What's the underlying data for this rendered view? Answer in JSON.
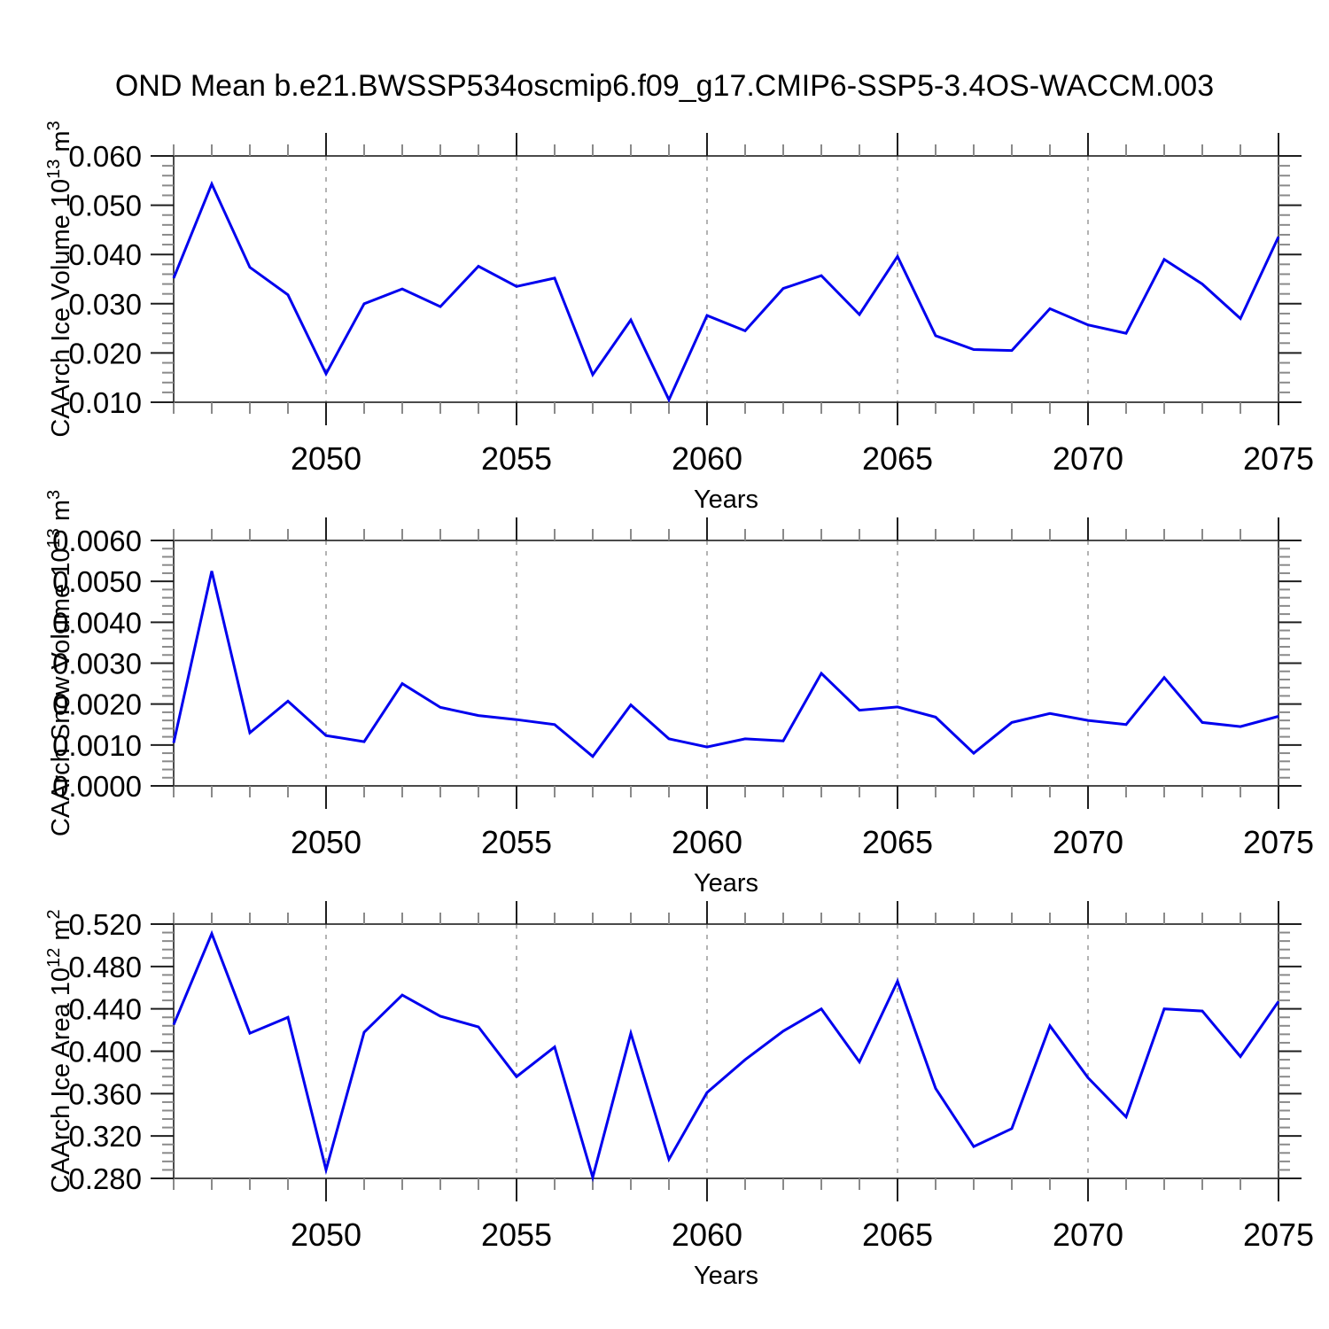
{
  "title": "OND Mean b.e21.BWSSP534oscmip6.f09_g17.CMIP6-SSP5-3.4OS-WACCM.003",
  "colors": {
    "line": "#0000EE",
    "frame": "#4a4a4a",
    "tick_major": "#1f1f1f",
    "tick_minor": "#8a8a8a",
    "grid": "#9a9a9a",
    "text": "#000000",
    "background": "#ffffff"
  },
  "x_axis": {
    "label": "Years",
    "years": [
      2046,
      2047,
      2048,
      2049,
      2050,
      2051,
      2052,
      2053,
      2054,
      2055,
      2056,
      2057,
      2058,
      2059,
      2060,
      2061,
      2062,
      2063,
      2064,
      2065,
      2066,
      2067,
      2068,
      2069,
      2070,
      2071,
      2072,
      2073,
      2074,
      2075
    ],
    "major_tick_years": [
      2050,
      2055,
      2060,
      2065,
      2070,
      2075
    ],
    "grid_years": [
      2050,
      2055,
      2060,
      2065,
      2070
    ]
  },
  "chart_data": [
    {
      "type": "line",
      "name": "caarch-ice-volume",
      "ylabel_text": "CAArch Ice Volume 10^13 m^3",
      "ylabel_parts": [
        [
          "t",
          "CAArch Ice Volume 10"
        ],
        [
          "s",
          "13"
        ],
        [
          "t",
          " m"
        ],
        [
          "s",
          "3"
        ]
      ],
      "xlabel": "Years",
      "ylim": [
        0.01,
        0.06
      ],
      "ytick_major": 0.01,
      "ytick_minor": 0.002,
      "ytick_decimals": 3,
      "grid": "x-dashed",
      "legend": "none",
      "x": [
        2046,
        2047,
        2048,
        2049,
        2050,
        2051,
        2052,
        2053,
        2054,
        2055,
        2056,
        2057,
        2058,
        2059,
        2060,
        2061,
        2062,
        2063,
        2064,
        2065,
        2066,
        2067,
        2068,
        2069,
        2070,
        2071,
        2072,
        2073,
        2074,
        2075
      ],
      "values": [
        0.0352,
        0.0543,
        0.0374,
        0.0318,
        0.0158,
        0.03,
        0.033,
        0.0294,
        0.0376,
        0.0335,
        0.0352,
        0.0156,
        0.0267,
        0.0105,
        0.0276,
        0.0245,
        0.0331,
        0.0357,
        0.0278,
        0.0396,
        0.0235,
        0.0207,
        0.0205,
        0.029,
        0.0257,
        0.024,
        0.039,
        0.034,
        0.027,
        0.0436
      ]
    },
    {
      "type": "line",
      "name": "caarch-snow-volume",
      "ylabel_text": "CAArch Snow Volume 10^13 m^3",
      "ylabel_parts": [
        [
          "t",
          "CAArch Snow Volume 10"
        ],
        [
          "s",
          "13"
        ],
        [
          "t",
          " m"
        ],
        [
          "s",
          "3"
        ]
      ],
      "xlabel": "Years",
      "ylim": [
        0.0,
        0.006
      ],
      "ytick_major": 0.001,
      "ytick_minor": 0.0002,
      "ytick_decimals": 4,
      "grid": "x-dashed",
      "legend": "none",
      "x": [
        2046,
        2047,
        2048,
        2049,
        2050,
        2051,
        2052,
        2053,
        2054,
        2055,
        2056,
        2057,
        2058,
        2059,
        2060,
        2061,
        2062,
        2063,
        2064,
        2065,
        2066,
        2067,
        2068,
        2069,
        2070,
        2071,
        2072,
        2073,
        2074,
        2075
      ],
      "values": [
        0.00105,
        0.00525,
        0.0013,
        0.00207,
        0.00123,
        0.00108,
        0.0025,
        0.00192,
        0.00172,
        0.00162,
        0.0015,
        0.00072,
        0.00198,
        0.00115,
        0.00095,
        0.00115,
        0.0011,
        0.00275,
        0.00185,
        0.00193,
        0.00168,
        0.0008,
        0.00155,
        0.00177,
        0.0016,
        0.0015,
        0.00265,
        0.00155,
        0.00145,
        0.0017
      ]
    },
    {
      "type": "line",
      "name": "caarch-ice-area",
      "ylabel_text": "CAArch Ice Area 10^12 m^2",
      "ylabel_parts": [
        [
          "t",
          "CAArch Ice Area 10"
        ],
        [
          "s",
          "12"
        ],
        [
          "t",
          " m"
        ],
        [
          "s",
          "2"
        ]
      ],
      "xlabel": "Years",
      "ylim": [
        0.28,
        0.52
      ],
      "ytick_major": 0.04,
      "ytick_minor": 0.008,
      "ytick_decimals": 3,
      "grid": "x-dashed",
      "legend": "none",
      "x": [
        2046,
        2047,
        2048,
        2049,
        2050,
        2051,
        2052,
        2053,
        2054,
        2055,
        2056,
        2057,
        2058,
        2059,
        2060,
        2061,
        2062,
        2063,
        2064,
        2065,
        2066,
        2067,
        2068,
        2069,
        2070,
        2071,
        2072,
        2073,
        2074,
        2075
      ],
      "values": [
        0.425,
        0.511,
        0.417,
        0.432,
        0.288,
        0.418,
        0.453,
        0.433,
        0.423,
        0.376,
        0.404,
        0.281,
        0.417,
        0.298,
        0.361,
        0.392,
        0.419,
        0.44,
        0.39,
        0.466,
        0.365,
        0.31,
        0.327,
        0.424,
        0.375,
        0.338,
        0.44,
        0.438,
        0.395,
        0.447
      ]
    }
  ]
}
